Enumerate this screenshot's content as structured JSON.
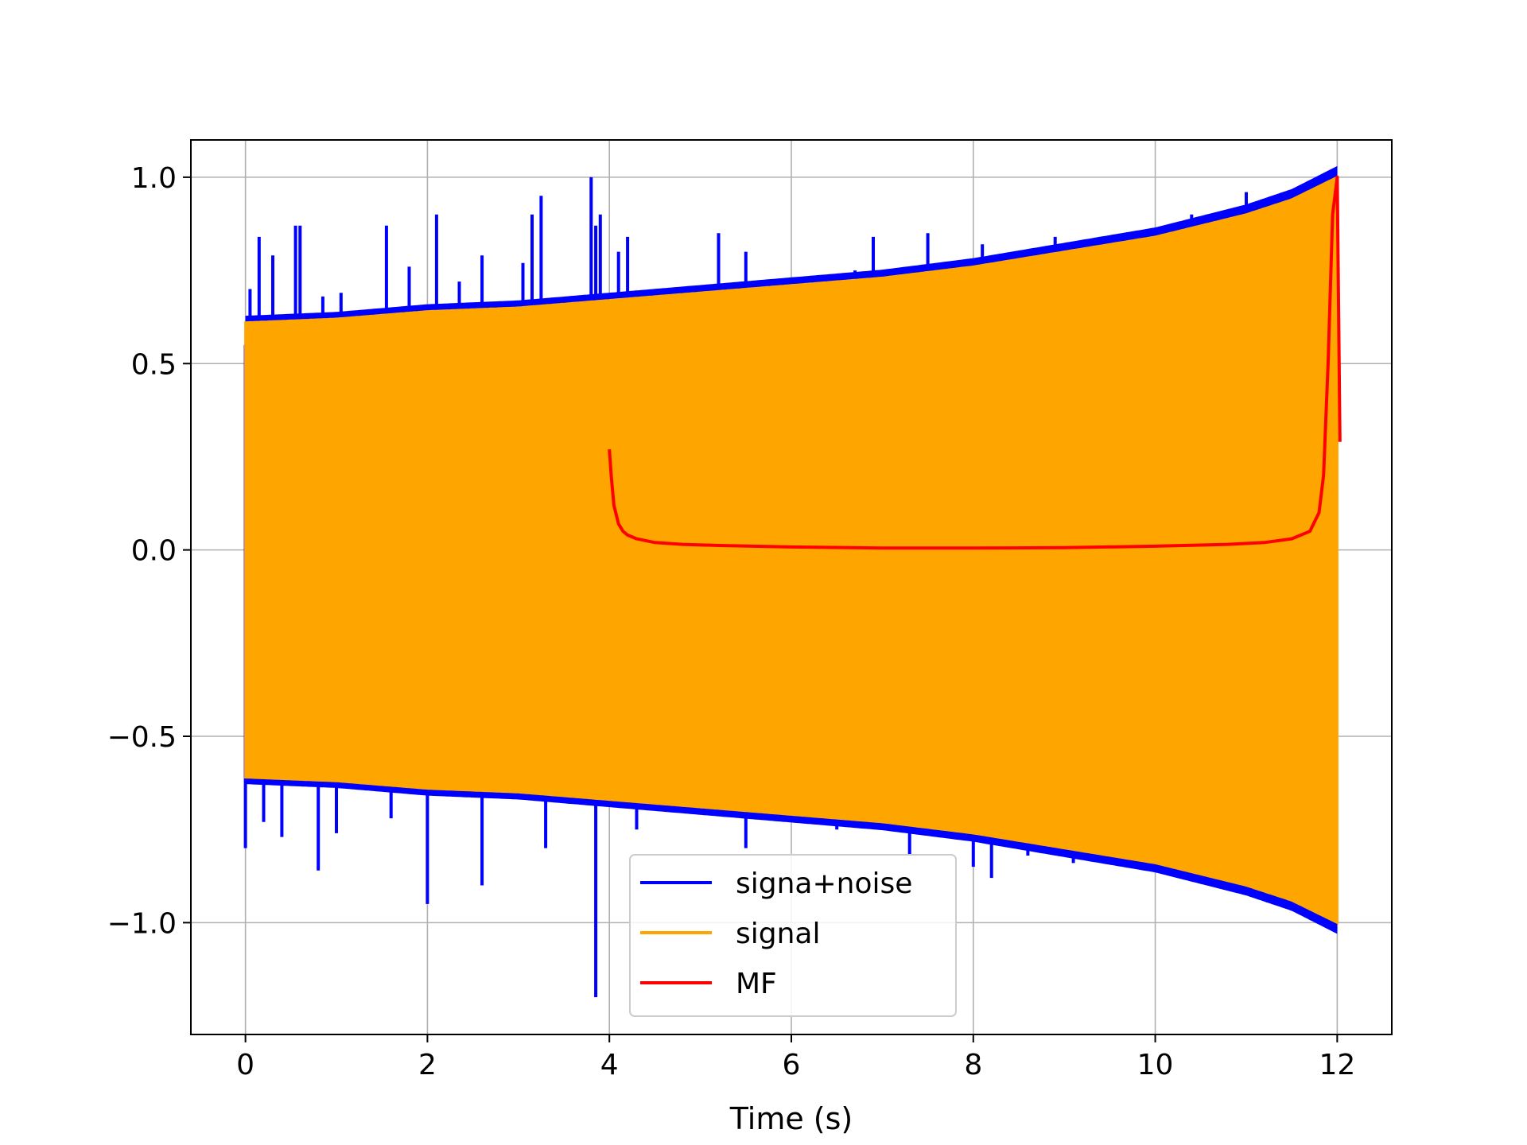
{
  "chart_data": {
    "type": "line",
    "title": "",
    "xlabel": "Time (s)",
    "ylabel": "",
    "xlim": [
      -0.6,
      12.6
    ],
    "ylim": [
      -1.3,
      1.1
    ],
    "xticks": [
      0,
      2,
      4,
      6,
      8,
      10,
      12
    ],
    "xtick_labels": [
      "0",
      "2",
      "4",
      "6",
      "8",
      "10",
      "12"
    ],
    "yticks": [
      -1.0,
      -0.5,
      0.0,
      0.5,
      1.0
    ],
    "ytick_labels": [
      "−1.0",
      "−0.5",
      "0.0",
      "0.5",
      "1.0"
    ],
    "grid": true,
    "legend_position": "bottom-center",
    "series": [
      {
        "name": "signa+noise",
        "color": "#0000ff",
        "description_values": {
          "x_range": [
            0,
            12
          ],
          "envelope_top": [
            [
              0,
              0.62
            ],
            [
              2,
              0.64
            ],
            [
              4,
              0.67
            ],
            [
              6,
              0.71
            ],
            [
              8,
              0.76
            ],
            [
              10,
              0.84
            ],
            [
              11,
              0.9
            ],
            [
              12,
              1.0
            ]
          ],
          "spike_peaks": [
            [
              0.0,
              0.55
            ],
            [
              0.05,
              0.7
            ],
            [
              0.15,
              0.84
            ],
            [
              0.3,
              0.79
            ],
            [
              0.55,
              0.87
            ],
            [
              0.6,
              0.87
            ],
            [
              0.85,
              0.68
            ],
            [
              1.05,
              0.69
            ],
            [
              1.55,
              0.87
            ],
            [
              1.8,
              0.76
            ],
            [
              2.1,
              0.9
            ],
            [
              2.35,
              0.72
            ],
            [
              2.6,
              0.79
            ],
            [
              3.05,
              0.77
            ],
            [
              3.15,
              0.9
            ],
            [
              3.25,
              0.95
            ],
            [
              3.8,
              1.0
            ],
            [
              3.85,
              0.87
            ],
            [
              3.9,
              0.9
            ],
            [
              4.1,
              0.8
            ],
            [
              4.2,
              0.84
            ],
            [
              5.2,
              0.85
            ],
            [
              5.5,
              0.8
            ],
            [
              6.7,
              0.75
            ],
            [
              6.9,
              0.84
            ],
            [
              7.5,
              0.85
            ],
            [
              8.1,
              0.82
            ],
            [
              8.2,
              0.78
            ],
            [
              8.9,
              0.84
            ],
            [
              10.4,
              0.9
            ],
            [
              11.0,
              0.96
            ]
          ],
          "spike_troughs": [
            [
              0.0,
              -0.8
            ],
            [
              0.2,
              -0.73
            ],
            [
              0.4,
              -0.77
            ],
            [
              0.8,
              -0.86
            ],
            [
              1.0,
              -0.76
            ],
            [
              1.6,
              -0.72
            ],
            [
              2.0,
              -0.95
            ],
            [
              2.6,
              -0.9
            ],
            [
              3.3,
              -0.8
            ],
            [
              3.85,
              -1.2
            ],
            [
              4.3,
              -0.75
            ],
            [
              5.5,
              -0.8
            ],
            [
              6.5,
              -0.75
            ],
            [
              7.3,
              -0.82
            ],
            [
              8.0,
              -0.85
            ],
            [
              8.2,
              -0.88
            ],
            [
              8.4,
              -0.78
            ],
            [
              8.6,
              -0.82
            ],
            [
              9.1,
              -0.84
            ]
          ]
        }
      },
      {
        "name": "signal",
        "color": "#ffa500",
        "description_values": {
          "x_range": [
            0,
            12
          ],
          "envelope": [
            [
              0,
              0.61
            ],
            [
              1,
              0.62
            ],
            [
              2,
              0.64
            ],
            [
              3,
              0.65
            ],
            [
              4,
              0.67
            ],
            [
              5,
              0.69
            ],
            [
              6,
              0.71
            ],
            [
              7,
              0.73
            ],
            [
              8,
              0.76
            ],
            [
              9,
              0.8
            ],
            [
              10,
              0.84
            ],
            [
              11,
              0.9
            ],
            [
              11.5,
              0.94
            ],
            [
              12,
              1.0
            ]
          ]
        }
      },
      {
        "name": "MF",
        "color": "#ff0000",
        "x": [
          4.0,
          4.02,
          4.05,
          4.1,
          4.15,
          4.2,
          4.3,
          4.5,
          4.8,
          5.2,
          6.0,
          7.0,
          8.0,
          9.0,
          10.0,
          10.8,
          11.2,
          11.5,
          11.7,
          11.8,
          11.85,
          11.9,
          11.95,
          12.0,
          12.03
        ],
        "values": [
          0.27,
          0.2,
          0.12,
          0.07,
          0.05,
          0.04,
          0.03,
          0.02,
          0.015,
          0.012,
          0.008,
          0.005,
          0.005,
          0.006,
          0.01,
          0.015,
          0.02,
          0.03,
          0.05,
          0.1,
          0.2,
          0.5,
          0.9,
          1.0,
          0.29
        ]
      }
    ]
  }
}
